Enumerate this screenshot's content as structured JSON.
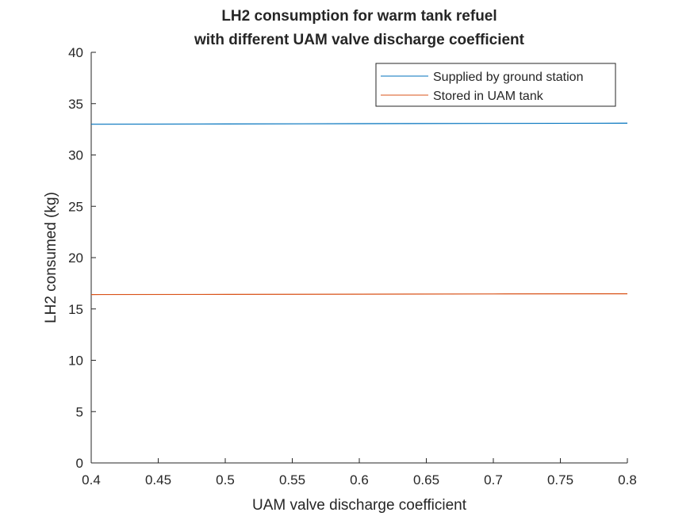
{
  "chart_data": {
    "type": "line",
    "title": [
      "LH2 consumption for warm tank refuel",
      "with different UAM valve discharge coefficient"
    ],
    "xlabel": "UAM valve discharge coefficient",
    "ylabel": "LH2 consumed (kg)",
    "xlim": [
      0.4,
      0.8
    ],
    "ylim": [
      0,
      40
    ],
    "xticks": [
      0.4,
      0.45,
      0.5,
      0.55,
      0.6,
      0.65,
      0.7,
      0.75,
      0.8
    ],
    "xtick_labels": [
      "0.4",
      "0.45",
      "0.5",
      "0.55",
      "0.6",
      "0.65",
      "0.7",
      "0.75",
      "0.8"
    ],
    "yticks": [
      0,
      5,
      10,
      15,
      20,
      25,
      30,
      35,
      40
    ],
    "ytick_labels": [
      "0",
      "5",
      "10",
      "15",
      "20",
      "25",
      "30",
      "35",
      "40"
    ],
    "grid": false,
    "legend_position": "top-right",
    "series": [
      {
        "name": "Supplied by ground station",
        "color": "#0072BD",
        "x": [
          0.4,
          0.5,
          0.6,
          0.7,
          0.8
        ],
        "y": [
          33.0,
          33.02,
          33.05,
          33.07,
          33.1
        ]
      },
      {
        "name": "Stored in UAM tank",
        "color": "#D95319",
        "x": [
          0.4,
          0.5,
          0.6,
          0.7,
          0.8
        ],
        "y": [
          16.4,
          16.42,
          16.44,
          16.46,
          16.48
        ]
      }
    ]
  }
}
